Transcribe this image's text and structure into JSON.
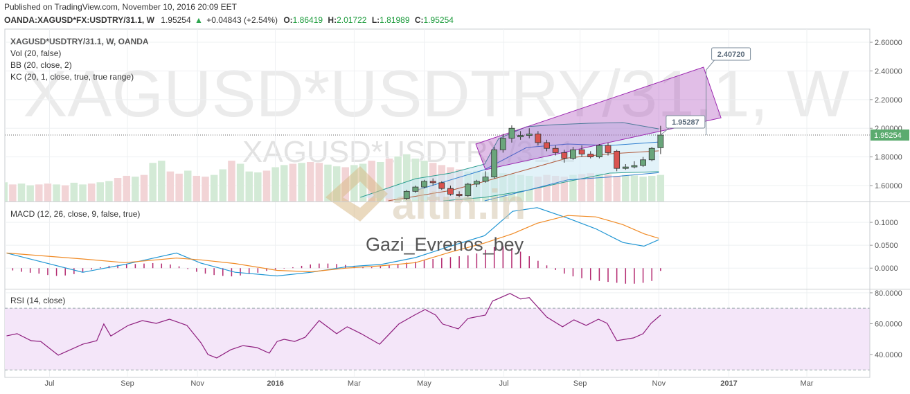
{
  "header": {
    "published": "Published on TradingView.com, November 10, 2016 20:09 EET",
    "symbol": "OANDA:XAGUSD*FX:USDTRY/31.1, W",
    "last": "1.95254",
    "arrow": "▲",
    "change": "+0.04843 (+2.54%)",
    "o_label": "O:",
    "o": "1.86419",
    "h_label": "H:",
    "h": "2.01722",
    "l_label": "L:",
    "l": "1.81989",
    "c_label": "C:",
    "c": "1.95254"
  },
  "watermarks": {
    "big": "XAGUSD*USDTRY/31.1, W",
    "mid": "XAGUSD*USDTRY/31.1",
    "brand": "altın.in",
    "author": "Gazi_Evrenos_bey"
  },
  "chart_data": [
    {
      "type": "candlestick",
      "title": "XAGUSD*USDTRY/31.1, W, OANDA",
      "legend": [
        "Vol (20, false)",
        "BB (20, close, 2)",
        "KC (20, 1, close, true, true range)"
      ],
      "ylim": [
        1.489,
        2.692
      ],
      "yticks": [
        {
          "value": 1.6,
          "label": "1.60000"
        },
        {
          "value": 1.8,
          "label": "1.80000"
        },
        {
          "value": 2.0,
          "label": "2.00000"
        },
        {
          "value": 2.2,
          "label": "2.20000"
        },
        {
          "value": 2.4,
          "label": "2.40000"
        },
        {
          "value": 2.6,
          "label": "2.60000"
        }
      ],
      "up_color": "#6aa57b",
      "down_color": "#d9534f",
      "x": [
        40.8,
        41.8,
        42.8,
        43.8,
        44.8,
        45.8,
        46.8,
        47.8,
        48.8,
        49.8,
        50.8,
        51.8,
        52.8,
        53.8,
        54.8,
        55.8,
        56.8,
        57.8,
        58.8,
        59.8,
        60.8,
        61.8,
        62.8,
        63.8,
        64.8,
        65.8,
        66.8,
        67.8,
        68.8,
        69.8
      ],
      "open": [
        1.51,
        1.56,
        1.59,
        1.63,
        1.62,
        1.58,
        1.54,
        1.53,
        1.61,
        1.63,
        1.66,
        1.85,
        1.93,
        1.94,
        1.95,
        1.96,
        1.9,
        1.86,
        1.83,
        1.79,
        1.85,
        1.82,
        1.8,
        1.88,
        1.84,
        1.72,
        1.73,
        1.74,
        1.78,
        1.86419
      ],
      "high": [
        1.57,
        1.6,
        1.64,
        1.65,
        1.63,
        1.6,
        1.56,
        1.62,
        1.64,
        1.7,
        1.87,
        1.96,
        2.02,
        1.98,
        2.0,
        1.98,
        1.92,
        1.88,
        1.85,
        1.87,
        1.88,
        1.84,
        1.89,
        1.9,
        1.85,
        1.75,
        1.77,
        1.8,
        1.87,
        2.01722
      ],
      "low": [
        1.5,
        1.55,
        1.58,
        1.6,
        1.57,
        1.53,
        1.52,
        1.52,
        1.59,
        1.62,
        1.65,
        1.83,
        1.9,
        1.92,
        1.93,
        1.88,
        1.84,
        1.81,
        1.76,
        1.78,
        1.8,
        1.79,
        1.79,
        1.81,
        1.7,
        1.71,
        1.72,
        1.73,
        1.77,
        1.81989
      ],
      "close": [
        1.56,
        1.59,
        1.63,
        1.62,
        1.58,
        1.54,
        1.53,
        1.61,
        1.63,
        1.66,
        1.85,
        1.93,
        2.0,
        1.95,
        1.96,
        1.9,
        1.86,
        1.83,
        1.79,
        1.85,
        1.82,
        1.8,
        1.88,
        1.83,
        1.72,
        1.73,
        1.74,
        1.78,
        1.86,
        1.95254
      ],
      "last_price": {
        "value": 1.95254,
        "label": "1.95254",
        "color": "#5bab6f"
      },
      "volume": {
        "ylim": [
          0,
          400
        ],
        "up_color": "#d3ead6",
        "down_color": "#f2d4d6",
        "x": [
          -5.2,
          -4.2,
          -3.2,
          -2.2,
          -1.2,
          -0.2,
          0.8,
          1.8,
          2.8,
          3.8,
          4.8,
          5.8,
          6.8,
          7.8,
          8.8,
          9.8,
          10.8,
          11.8,
          12.8,
          13.8,
          14.8,
          15.8,
          16.8,
          17.8,
          18.8,
          19.8,
          20.8,
          21.8,
          22.8,
          23.8,
          24.8,
          25.8,
          26.8,
          27.8,
          28.8,
          29.8,
          30.8,
          31.8,
          32.8,
          33.8,
          34.8,
          35.8,
          36.8,
          37.8,
          38.8,
          39.8,
          40.8,
          41.8,
          42.8,
          43.8,
          44.8,
          45.8,
          46.8,
          47.8,
          48.8,
          49.8,
          50.8,
          51.8,
          52.8,
          53.8,
          54.8,
          55.8,
          56.8,
          57.8,
          58.8,
          59.8,
          60.8,
          61.8,
          62.8,
          63.8,
          64.8,
          65.8,
          66.8,
          67.8,
          68.8,
          69.8
        ],
        "values": [
          45,
          40,
          42,
          38,
          40,
          42,
          40,
          38,
          44,
          40,
          42,
          45,
          48,
          55,
          60,
          58,
          62,
          90,
          95,
          70,
          65,
          72,
          60,
          58,
          62,
          75,
          95,
          88,
          70,
          68,
          72,
          80,
          85,
          88,
          90,
          92,
          90,
          86,
          82,
          80,
          85,
          88,
          95,
          92,
          100,
          105,
          110,
          100,
          95,
          90,
          85,
          80,
          75,
          70,
          72,
          68,
          65,
          66,
          64,
          62,
          60,
          58,
          62,
          60,
          58,
          62,
          64,
          66,
          65,
          63,
          60,
          62,
          61,
          58,
          60,
          62
        ],
        "up": [
          true,
          false,
          true,
          true,
          false,
          false,
          true,
          false,
          true,
          true,
          false,
          true,
          true,
          false,
          false,
          true,
          false,
          true,
          true,
          false,
          false,
          true,
          false,
          false,
          true,
          true,
          false,
          true,
          true,
          true,
          false,
          true,
          true,
          false,
          true,
          false,
          false,
          true,
          true,
          false,
          true,
          true,
          false,
          true,
          false,
          true,
          true,
          true,
          true,
          false,
          false,
          false,
          false,
          true,
          true,
          true,
          true,
          true,
          true,
          true,
          true,
          false,
          false,
          false,
          false,
          true,
          false,
          false,
          true,
          false,
          false,
          true,
          true,
          true,
          true,
          true
        ]
      },
      "bands": {
        "fill": "#cfeaf5",
        "series": [
          {
            "color": "#2a9d8f",
            "x": [
              35.5,
              41.8,
              45.8,
              49.7,
              51.3,
              54.5,
              57.6,
              61.6,
              65.5,
              69.6
            ],
            "values": [
              1.518,
              1.648,
              1.687,
              1.75,
              1.928,
              2.011,
              2.025,
              2.035,
              2.04,
              1.996
            ]
          },
          {
            "color": "#b0593a",
            "x": [
              38.7,
              45.8,
              49.7,
              54.5,
              59.2,
              64.0,
              69.6
            ],
            "values": [
              1.494,
              1.566,
              1.629,
              1.711,
              1.793,
              1.822,
              1.842
            ]
          },
          {
            "color": "#2a9d8f",
            "x": [
              45.0,
              49.7,
              54.5,
              59.2,
              64.0,
              69.6
            ],
            "values": [
              1.494,
              1.518,
              1.566,
              1.629,
              1.687,
              1.697
            ]
          },
          {
            "color": "#2f7fd0",
            "x": [
              41.8,
              49.7,
              54.5,
              59.2,
              64.0,
              69.6
            ],
            "values": [
              1.566,
              1.711,
              1.866,
              1.89,
              1.88,
              1.904
            ]
          },
          {
            "color": "#2f7fd0",
            "x": [
              49.7,
              54.5,
              59.2,
              64.0,
              69.6
            ],
            "values": [
              1.494,
              1.566,
              1.64,
              1.66,
              1.69
            ]
          }
        ]
      },
      "channel": {
        "color": "#9c27b0",
        "upper": {
          "x": [
            48.7,
            74.7
          ],
          "values": [
            1.89,
            2.426
          ]
        },
        "lower": {
          "x": [
            49.8,
            76.7
          ],
          "values": [
            1.711,
            2.073
          ]
        }
      },
      "annotations": [
        {
          "label": "2.40720",
          "value": 2.4072,
          "x": 75.0
        },
        {
          "label": "1.95287",
          "value": 1.95287,
          "x": 69.8
        }
      ]
    },
    {
      "type": "macd",
      "title": "MACD (12, 26, close, 9, false, true)",
      "ylim": [
        -0.045,
        0.144
      ],
      "yticks": [
        {
          "value": 0,
          "label": "0.0000"
        },
        {
          "value": 0.05,
          "label": "0.0500"
        },
        {
          "value": 0.1,
          "label": "0.1000"
        }
      ],
      "series": [
        {
          "color": "#2196d3",
          "x": [
            -4.9,
            3.8,
            8.6,
            14.5,
            17.3,
            21.2,
            26.0,
            29.9,
            33.9,
            37.9,
            41.8,
            45.8,
            49.7,
            52.9,
            55.7,
            59.2,
            62.4,
            65.5,
            67.9,
            69.6
          ],
          "values": [
            0.033,
            -0.009,
            0.008,
            0.033,
            0.011,
            -0.009,
            -0.017,
            -0.009,
            0.003,
            0.008,
            0.023,
            0.048,
            0.071,
            0.124,
            0.132,
            0.109,
            0.086,
            0.056,
            0.048,
            0.062
          ]
        },
        {
          "color": "#f08a24",
          "x": [
            -4.9,
            3.8,
            8.6,
            14.5,
            17.3,
            21.2,
            26.0,
            29.9,
            33.9,
            37.9,
            41.8,
            45.8,
            49.7,
            52.9,
            55.7,
            59.2,
            62.4,
            65.5,
            67.9,
            69.6
          ],
          "values": [
            0.033,
            0.02,
            0.012,
            0.022,
            0.018,
            0.01,
            -0.005,
            -0.008,
            0,
            0.005,
            0.012,
            0.035,
            0.055,
            0.075,
            0.098,
            0.115,
            0.112,
            0.095,
            0.075,
            0.065
          ]
        }
      ],
      "histogram": {
        "color": "#b3286f",
        "x": [
          -5.2,
          -4.2,
          -3.2,
          -2.2,
          -1.2,
          -0.2,
          0.8,
          1.8,
          2.8,
          3.8,
          4.8,
          5.8,
          6.8,
          7.8,
          8.8,
          9.8,
          10.8,
          11.8,
          12.8,
          13.8,
          14.8,
          15.8,
          16.8,
          17.8,
          18.8,
          19.8,
          20.8,
          21.8,
          22.8,
          23.8,
          24.8,
          25.8,
          26.8,
          27.8,
          28.8,
          29.8,
          30.8,
          31.8,
          32.8,
          33.8,
          34.8,
          35.8,
          36.8,
          37.8,
          38.8,
          39.8,
          40.8,
          41.8,
          42.8,
          43.8,
          44.8,
          45.8,
          46.8,
          47.8,
          48.8,
          49.8,
          50.8,
          51.8,
          52.8,
          53.8,
          54.8,
          55.8,
          56.8,
          57.8,
          58.8,
          59.8,
          60.8,
          61.8,
          62.8,
          63.8,
          64.8,
          65.8,
          66.8,
          67.8,
          68.8,
          69.8
        ],
        "values": [
          -0.003,
          -0.005,
          -0.008,
          -0.01,
          -0.012,
          -0.015,
          -0.017,
          -0.016,
          -0.013,
          -0.008,
          -0.003,
          0.002,
          0.005,
          0.007,
          0.008,
          0.009,
          0.01,
          0.011,
          0.01,
          0.008,
          0.004,
          -0.002,
          -0.008,
          -0.012,
          -0.015,
          -0.017,
          -0.018,
          -0.016,
          -0.013,
          -0.01,
          -0.006,
          -0.003,
          -0.001,
          0.002,
          0.005,
          0.008,
          0.01,
          0.01,
          0.009,
          0.007,
          0.004,
          0.002,
          0.002,
          0.004,
          0.006,
          0.009,
          0.012,
          0.014,
          0.017,
          0.02,
          0.022,
          0.024,
          0.026,
          0.028,
          0.032,
          0.04,
          0.046,
          0.048,
          0.044,
          0.036,
          0.026,
          0.016,
          0.006,
          -0.004,
          -0.012,
          -0.018,
          -0.022,
          -0.026,
          -0.028,
          -0.03,
          -0.032,
          -0.034,
          -0.034,
          -0.032,
          -0.028,
          -0.006
        ]
      }
    },
    {
      "type": "rsi",
      "title": "RSI (14, close)",
      "ylim": [
        25.2,
        82.2
      ],
      "yticks": [
        {
          "value": 40,
          "label": "40.0000"
        },
        {
          "value": 60,
          "label": "60.0000"
        },
        {
          "value": 80,
          "label": "80.0000"
        }
      ],
      "band": [
        30,
        70
      ],
      "band_color": "#f4e6f9",
      "color": "#8e1e7e",
      "xlim": [
        -5.1,
        93.7
      ],
      "xticks": [
        {
          "value": 0,
          "label": "Jul"
        },
        {
          "value": 8.9,
          "label": "Sep"
        },
        {
          "value": 16.9,
          "label": "Nov"
        },
        {
          "value": 25.8,
          "label": "2016"
        },
        {
          "value": 34.8,
          "label": "Mar"
        },
        {
          "value": 42.8,
          "label": "May"
        },
        {
          "value": 51.9,
          "label": "Jul"
        },
        {
          "value": 60.6,
          "label": "Sep"
        },
        {
          "value": 69.6,
          "label": "Nov"
        },
        {
          "value": 77.6,
          "label": "2017"
        },
        {
          "value": 86.5,
          "label": "Mar"
        }
      ],
      "x": [
        -4.9,
        -3.7,
        -2.1,
        -1.0,
        1.0,
        3.8,
        5.4,
        6.2,
        7.0,
        9.0,
        10.6,
        12.2,
        13.7,
        15.7,
        17.3,
        18.1,
        19.1,
        20.7,
        22.1,
        23.7,
        25.1,
        26.0,
        26.8,
        28.0,
        29.2,
        30.8,
        32.8,
        34.0,
        35.6,
        37.7,
        39.9,
        41.7,
        42.9,
        44.1,
        44.9,
        46.7,
        47.8,
        49.8,
        50.6,
        52.6,
        53.8,
        54.8,
        56.8,
        58.6,
        59.9,
        61.3,
        62.7,
        63.7,
        64.8,
        66.7,
        67.8,
        68.7,
        69.8
      ],
      "values": [
        52.1,
        53.5,
        49,
        48.5,
        39.6,
        46.7,
        49,
        59.8,
        52,
        58.9,
        62,
        60.2,
        62.9,
        58.9,
        47.6,
        40,
        37.8,
        43.1,
        45.8,
        44.5,
        40.9,
        48.5,
        49.9,
        48.5,
        51.2,
        62,
        53.5,
        58,
        53.5,
        46.7,
        59.8,
        65.6,
        69.2,
        65.6,
        59.8,
        56.6,
        63.4,
        65.6,
        74.6,
        79.6,
        76,
        76.9,
        64.3,
        58,
        62.5,
        58.9,
        62.9,
        60.2,
        49,
        50.8,
        53.5,
        60.2,
        65.6
      ]
    }
  ]
}
